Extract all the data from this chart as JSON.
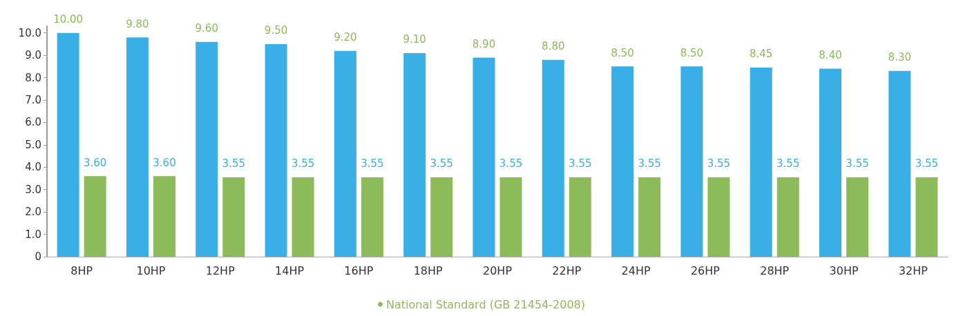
{
  "chart_data": {
    "type": "bar",
    "categories": [
      "8HP",
      "10HP",
      "12HP",
      "14HP",
      "16HP",
      "18HP",
      "20HP",
      "22HP",
      "24HP",
      "26HP",
      "28HP",
      "30HP",
      "32HP"
    ],
    "series": [
      {
        "color": "#3aaee6",
        "values": [
          10.0,
          9.8,
          9.6,
          9.5,
          9.2,
          9.1,
          8.9,
          8.8,
          8.5,
          8.5,
          8.45,
          8.4,
          8.3
        ],
        "value_labels": [
          "10.00",
          "9.80",
          "9.60",
          "9.50",
          "9.20",
          "9.10",
          "8.90",
          "8.80",
          "8.50",
          "8.50",
          "8.45",
          "8.40",
          "8.30"
        ]
      },
      {
        "name": "National Standard (GB 21454-2008)",
        "color": "#8dbb5a",
        "values": [
          3.6,
          3.6,
          3.55,
          3.55,
          3.55,
          3.55,
          3.55,
          3.55,
          3.55,
          3.55,
          3.55,
          3.55,
          3.55
        ],
        "value_labels": [
          "3.60",
          "3.60",
          "3.55",
          "3.55",
          "3.55",
          "3.55",
          "3.55",
          "3.55",
          "3.55",
          "3.55",
          "3.55",
          "3.55",
          "3.55"
        ]
      }
    ],
    "ylim": [
      0,
      10.3
    ],
    "yticks": [
      0,
      {
        "value": 1,
        "label": "1.0"
      },
      {
        "value": 2,
        "label": "2.0"
      },
      {
        "value": 3,
        "label": "3.0"
      },
      {
        "value": 4,
        "label": "4.0"
      },
      {
        "value": 5,
        "label": "5.0"
      },
      {
        "value": 6,
        "label": "6.0"
      },
      {
        "value": 7,
        "label": "7.0"
      },
      {
        "value": 8,
        "label": "8.0"
      },
      {
        "value": 9,
        "label": "9.0"
      },
      {
        "value": 10,
        "label": "10.0"
      }
    ],
    "grid": false,
    "legend": "bottom"
  }
}
